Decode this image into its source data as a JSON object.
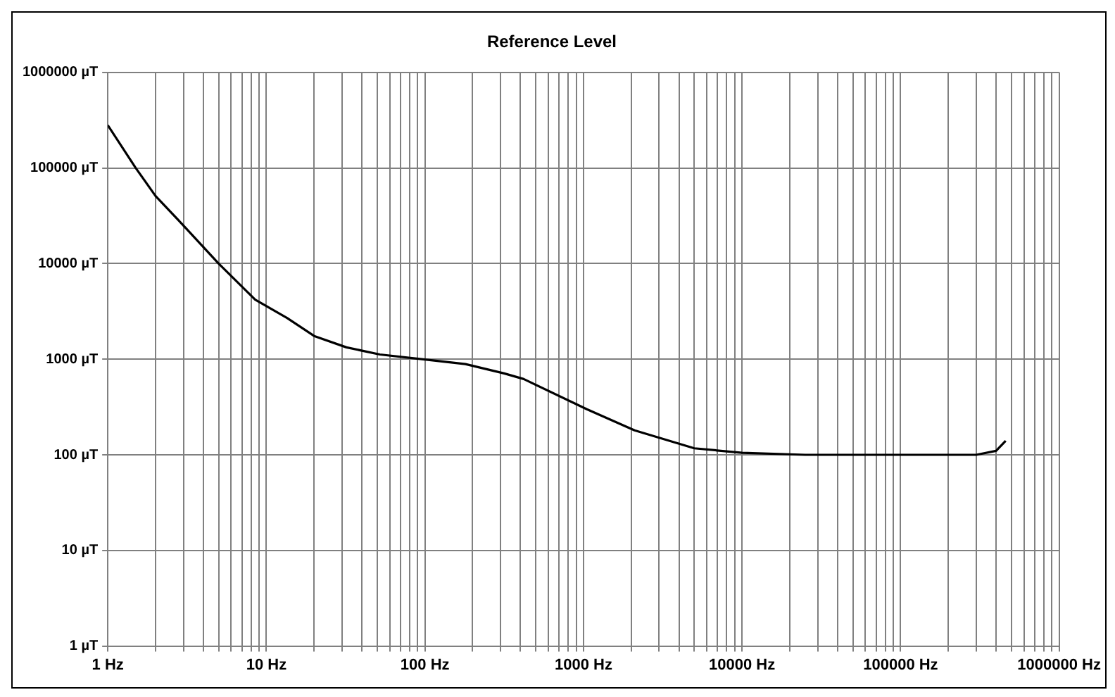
{
  "chart_data": {
    "type": "line",
    "title": "Reference Level",
    "log": "xy",
    "grid": true,
    "legend": false,
    "marker": "none",
    "line_style": "solid",
    "xlim": [
      1,
      1000000
    ],
    "ylim": [
      1,
      1000000
    ],
    "xticks": [
      {
        "value": 1,
        "label": "1 Hz"
      },
      {
        "value": 2,
        "label": null
      },
      {
        "value": 3,
        "label": null
      },
      {
        "value": 4,
        "label": null
      },
      {
        "value": 5,
        "label": null
      },
      {
        "value": 6,
        "label": null
      },
      {
        "value": 7,
        "label": null
      },
      {
        "value": 8,
        "label": null
      },
      {
        "value": 9,
        "label": null
      },
      {
        "value": 10,
        "label": "10 Hz"
      },
      {
        "value": 20,
        "label": null
      },
      {
        "value": 30,
        "label": null
      },
      {
        "value": 40,
        "label": null
      },
      {
        "value": 50,
        "label": null
      },
      {
        "value": 60,
        "label": null
      },
      {
        "value": 70,
        "label": null
      },
      {
        "value": 80,
        "label": null
      },
      {
        "value": 90,
        "label": null
      },
      {
        "value": 100,
        "label": "100 Hz"
      },
      {
        "value": 200,
        "label": null
      },
      {
        "value": 300,
        "label": null
      },
      {
        "value": 400,
        "label": null
      },
      {
        "value": 500,
        "label": null
      },
      {
        "value": 600,
        "label": null
      },
      {
        "value": 700,
        "label": null
      },
      {
        "value": 800,
        "label": null
      },
      {
        "value": 900,
        "label": null
      },
      {
        "value": 1000,
        "label": "1000 Hz"
      },
      {
        "value": 2000,
        "label": null
      },
      {
        "value": 3000,
        "label": null
      },
      {
        "value": 4000,
        "label": null
      },
      {
        "value": 5000,
        "label": null
      },
      {
        "value": 6000,
        "label": null
      },
      {
        "value": 7000,
        "label": null
      },
      {
        "value": 8000,
        "label": null
      },
      {
        "value": 9000,
        "label": null
      },
      {
        "value": 10000,
        "label": "10000 Hz"
      },
      {
        "value": 20000,
        "label": null
      },
      {
        "value": 30000,
        "label": null
      },
      {
        "value": 40000,
        "label": null
      },
      {
        "value": 50000,
        "label": null
      },
      {
        "value": 60000,
        "label": null
      },
      {
        "value": 70000,
        "label": null
      },
      {
        "value": 80000,
        "label": null
      },
      {
        "value": 90000,
        "label": null
      },
      {
        "value": 100000,
        "label": "100000 Hz"
      },
      {
        "value": 200000,
        "label": null
      },
      {
        "value": 300000,
        "label": null
      },
      {
        "value": 400000,
        "label": null
      },
      {
        "value": 500000,
        "label": null
      },
      {
        "value": 600000,
        "label": null
      },
      {
        "value": 700000,
        "label": null
      },
      {
        "value": 800000,
        "label": null
      },
      {
        "value": 900000,
        "label": null
      },
      {
        "value": 1000000,
        "label": "1000000 Hz"
      }
    ],
    "yticks": [
      {
        "value": 1,
        "label": "1 µT"
      },
      {
        "value": 10,
        "label": "10 µT"
      },
      {
        "value": 100,
        "label": "100 µT"
      },
      {
        "value": 1000,
        "label": "1000 µT"
      },
      {
        "value": 10000,
        "label": "10000 µT"
      },
      {
        "value": 100000,
        "label": "100000 µT"
      },
      {
        "value": 1000000,
        "label": "1000000 µT"
      }
    ],
    "x": [
      1,
      1.5,
      2,
      3,
      5,
      8.5,
      13.5,
      20,
      32,
      52,
      107,
      180,
      316,
      420,
      1050,
      2100,
      5000,
      10000,
      25000,
      300000,
      400000,
      460000
    ],
    "series": [
      {
        "color": "#000000",
        "values": [
          280000,
          100000,
          51000,
          25000,
          10000,
          4200,
          2700,
          1750,
          1330,
          1120,
          980,
          890,
          710,
          620,
          300,
          180,
          117,
          105,
          100,
          100,
          110,
          140
        ]
      }
    ]
  }
}
